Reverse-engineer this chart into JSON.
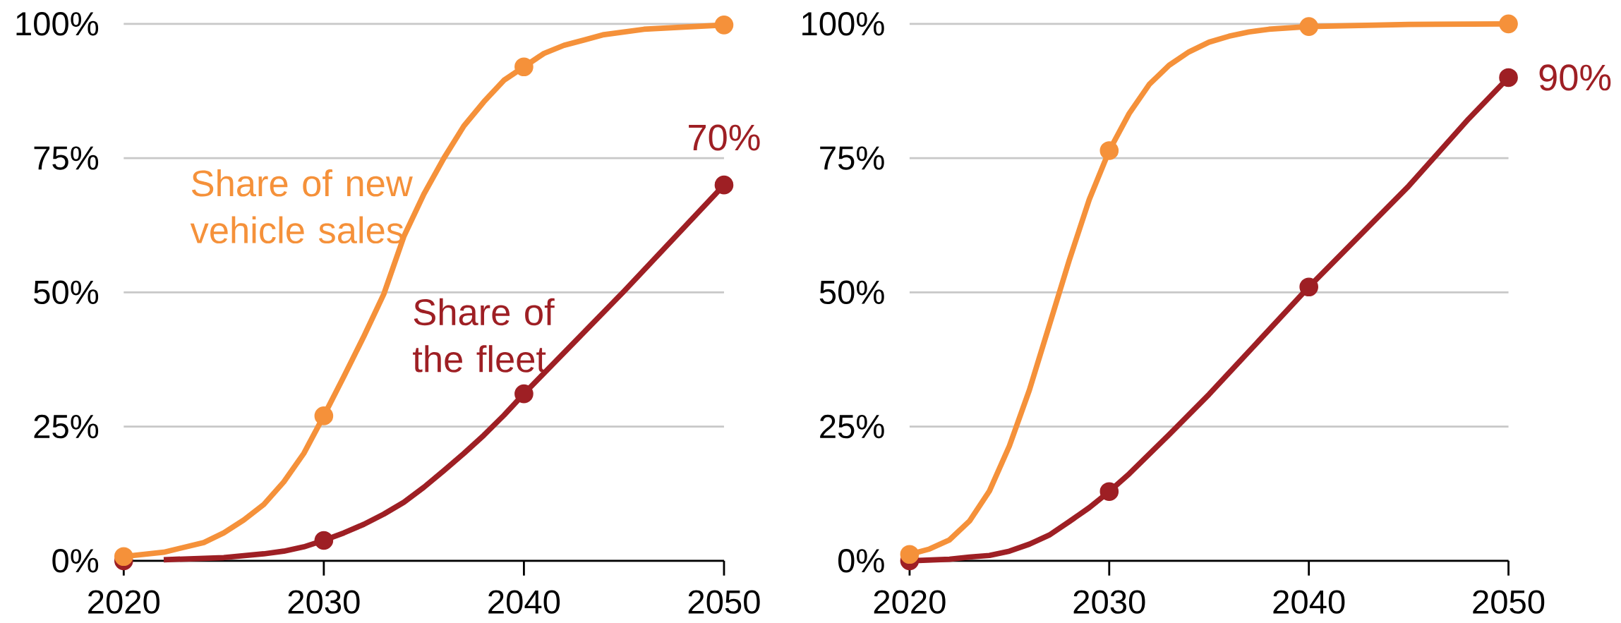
{
  "chart_data": [
    {
      "type": "line",
      "xlim": [
        2020,
        2050
      ],
      "ylim": [
        0,
        100
      ],
      "xticks": [
        2020,
        2030,
        2040,
        2050
      ],
      "yticks": [
        {
          "value": 0,
          "label": "0%"
        },
        {
          "value": 25,
          "label": "25%"
        },
        {
          "value": 50,
          "label": "50%"
        },
        {
          "value": 75,
          "label": "75%"
        },
        {
          "value": 100,
          "label": "100%"
        }
      ],
      "grid": "y",
      "legend": false,
      "line_style": "solid",
      "series": [
        {
          "name": "Share of new vehicle sales",
          "color": "#f5913a",
          "x": [
            2020,
            2022,
            2024,
            2025,
            2026,
            2027,
            2028,
            2029,
            2030,
            2031,
            2032,
            2033,
            2034,
            2035,
            2036,
            2037,
            2038,
            2039,
            2040,
            2041,
            2042,
            2043,
            2044,
            2046,
            2048,
            2050
          ],
          "values": [
            0.8,
            1.6,
            3.4,
            5.2,
            7.6,
            10.5,
            14.7,
            20,
            27,
            34.3,
            41.8,
            49.7,
            60.4,
            68.3,
            75,
            81,
            85.5,
            89.5,
            92,
            94.5,
            96,
            97,
            98,
            99,
            99.4,
            99.8
          ]
        },
        {
          "name": "Share of the fleet",
          "color": "#9e1f24",
          "x": [
            2022,
            2025,
            2027,
            2028,
            2029,
            2030,
            2031,
            2032,
            2033,
            2034,
            2035,
            2036,
            2037,
            2038,
            2039,
            2040,
            2045,
            2050
          ],
          "values": [
            0.2,
            0.6,
            1.3,
            1.8,
            2.6,
            3.8,
            5.2,
            6.8,
            8.7,
            10.9,
            13.7,
            16.8,
            20,
            23.4,
            27.1,
            31.1,
            50.2,
            70
          ]
        },
        {
          "type": "scatter",
          "color": "#9e1f24",
          "x": [
            2020,
            2030,
            2040,
            2050
          ],
          "values": [
            0,
            3.8,
            31.1,
            70
          ]
        },
        {
          "type": "scatter",
          "color": "#f5913a",
          "x": [
            2020,
            2030,
            2040,
            2050
          ],
          "values": [
            0.8,
            27,
            92,
            99.8
          ]
        }
      ],
      "annotations": [
        {
          "text": "70%",
          "x": 2050,
          "y": 70
        }
      ]
    },
    {
      "type": "line",
      "xlim": [
        2020,
        2050
      ],
      "ylim": [
        0,
        100
      ],
      "xticks": [
        2020,
        2030,
        2040,
        2050
      ],
      "yticks": [
        {
          "value": 0,
          "label": "0%"
        },
        {
          "value": 25,
          "label": "25%"
        },
        {
          "value": 50,
          "label": "50%"
        },
        {
          "value": 75,
          "label": "75%"
        },
        {
          "value": 100,
          "label": "100%"
        }
      ],
      "grid": "y",
      "legend": false,
      "line_style": "solid",
      "series": [
        {
          "color": "#f5913a",
          "x": [
            2020,
            2021,
            2022,
            2023,
            2024,
            2025,
            2026,
            2027,
            2028,
            2029,
            2030,
            2031,
            2032,
            2033,
            2034,
            2035,
            2036,
            2037,
            2038,
            2040,
            2045,
            2050
          ],
          "values": [
            1.2,
            2.2,
            3.9,
            7.4,
            13,
            21.4,
            31.8,
            43.9,
            56,
            67.3,
            76.4,
            83.3,
            88.7,
            92.3,
            94.8,
            96.6,
            97.7,
            98.5,
            99,
            99.5,
            99.9,
            100
          ]
        },
        {
          "color": "#9e1f24",
          "x": [
            2020,
            2022,
            2023,
            2024,
            2025,
            2026,
            2027,
            2028,
            2029,
            2030,
            2031,
            2033,
            2035,
            2040,
            2045,
            2048,
            2050
          ],
          "values": [
            0,
            0.3,
            0.7,
            1,
            1.8,
            3.1,
            4.8,
            7.3,
            9.9,
            12.9,
            16.2,
            23.5,
            31,
            51,
            69.8,
            82.3,
            90
          ]
        },
        {
          "type": "scatter",
          "color": "#9e1f24",
          "x": [
            2020,
            2030,
            2040,
            2050
          ],
          "values": [
            0,
            12.9,
            51,
            90
          ]
        },
        {
          "type": "scatter",
          "color": "#f5913a",
          "x": [
            2020,
            2030,
            2040,
            2050
          ],
          "values": [
            1.2,
            76.4,
            99.5,
            100
          ]
        }
      ],
      "annotations": [
        {
          "text": "90%",
          "x": 2050,
          "y": 90
        }
      ]
    }
  ]
}
